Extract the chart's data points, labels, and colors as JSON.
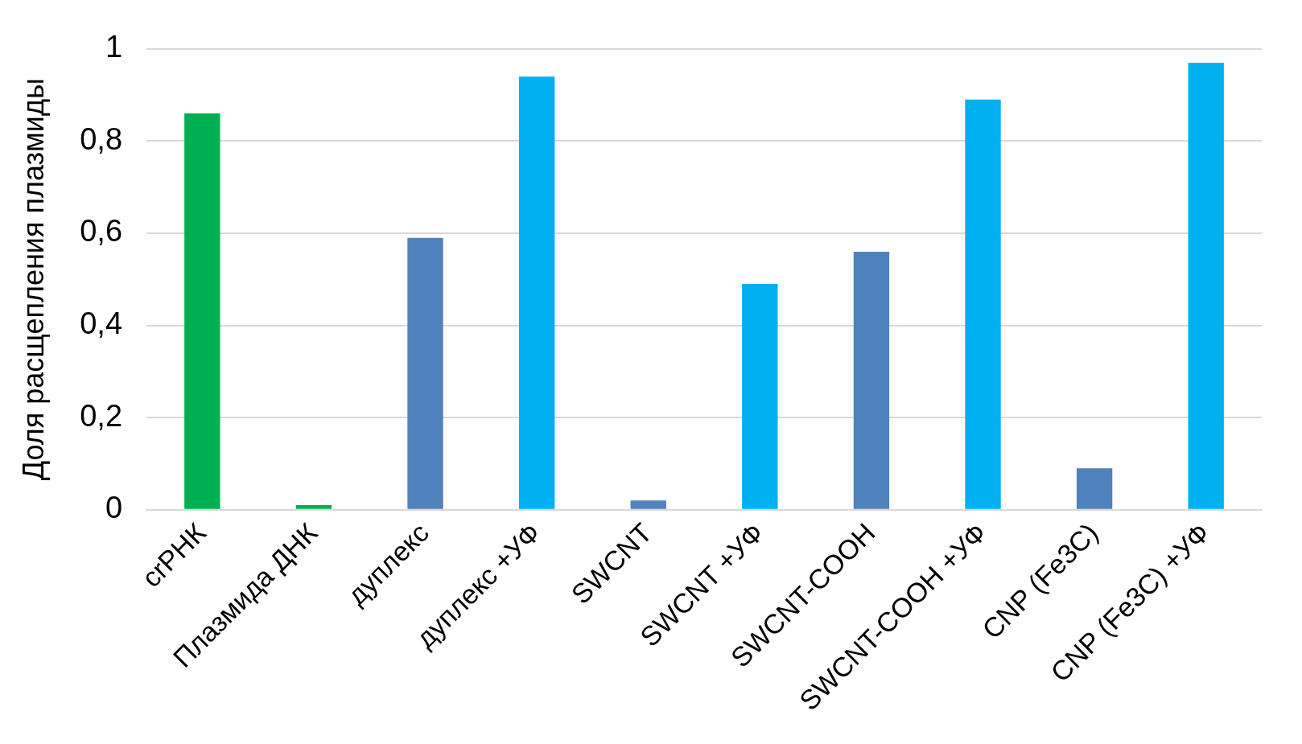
{
  "chart_data": {
    "type": "bar",
    "ylabel": "Доля расщепления плазмиды",
    "categories": [
      "crРНК",
      "Плазмида ДНК",
      "дуплекс",
      "дуплекс +УФ",
      "SWCNT",
      "SWCNT +УФ",
      "SWCNT-COOH",
      "SWCNT-COOH +УФ",
      "CNP (Fe3C)",
      "CNP (Fe3C) +УФ"
    ],
    "values": [
      0.86,
      0.01,
      0.59,
      0.94,
      0.02,
      0.49,
      0.56,
      0.89,
      0.09,
      0.97
    ],
    "colors": [
      "#00b050",
      "#00b050",
      "#4f81bd",
      "#00b0f0",
      "#4f81bd",
      "#00b0f0",
      "#4f81bd",
      "#00b0f0",
      "#4f81bd",
      "#00b0f0"
    ],
    "ylim": [
      0,
      1
    ],
    "yticks": [
      {
        "value": 0,
        "label": "0"
      },
      {
        "value": 0.2,
        "label": "0,2"
      },
      {
        "value": 0.4,
        "label": "0,4"
      },
      {
        "value": 0.6,
        "label": "0,6"
      },
      {
        "value": 0.8,
        "label": "0,8"
      },
      {
        "value": 1,
        "label": "1"
      }
    ],
    "grid": "y",
    "legend": false
  }
}
